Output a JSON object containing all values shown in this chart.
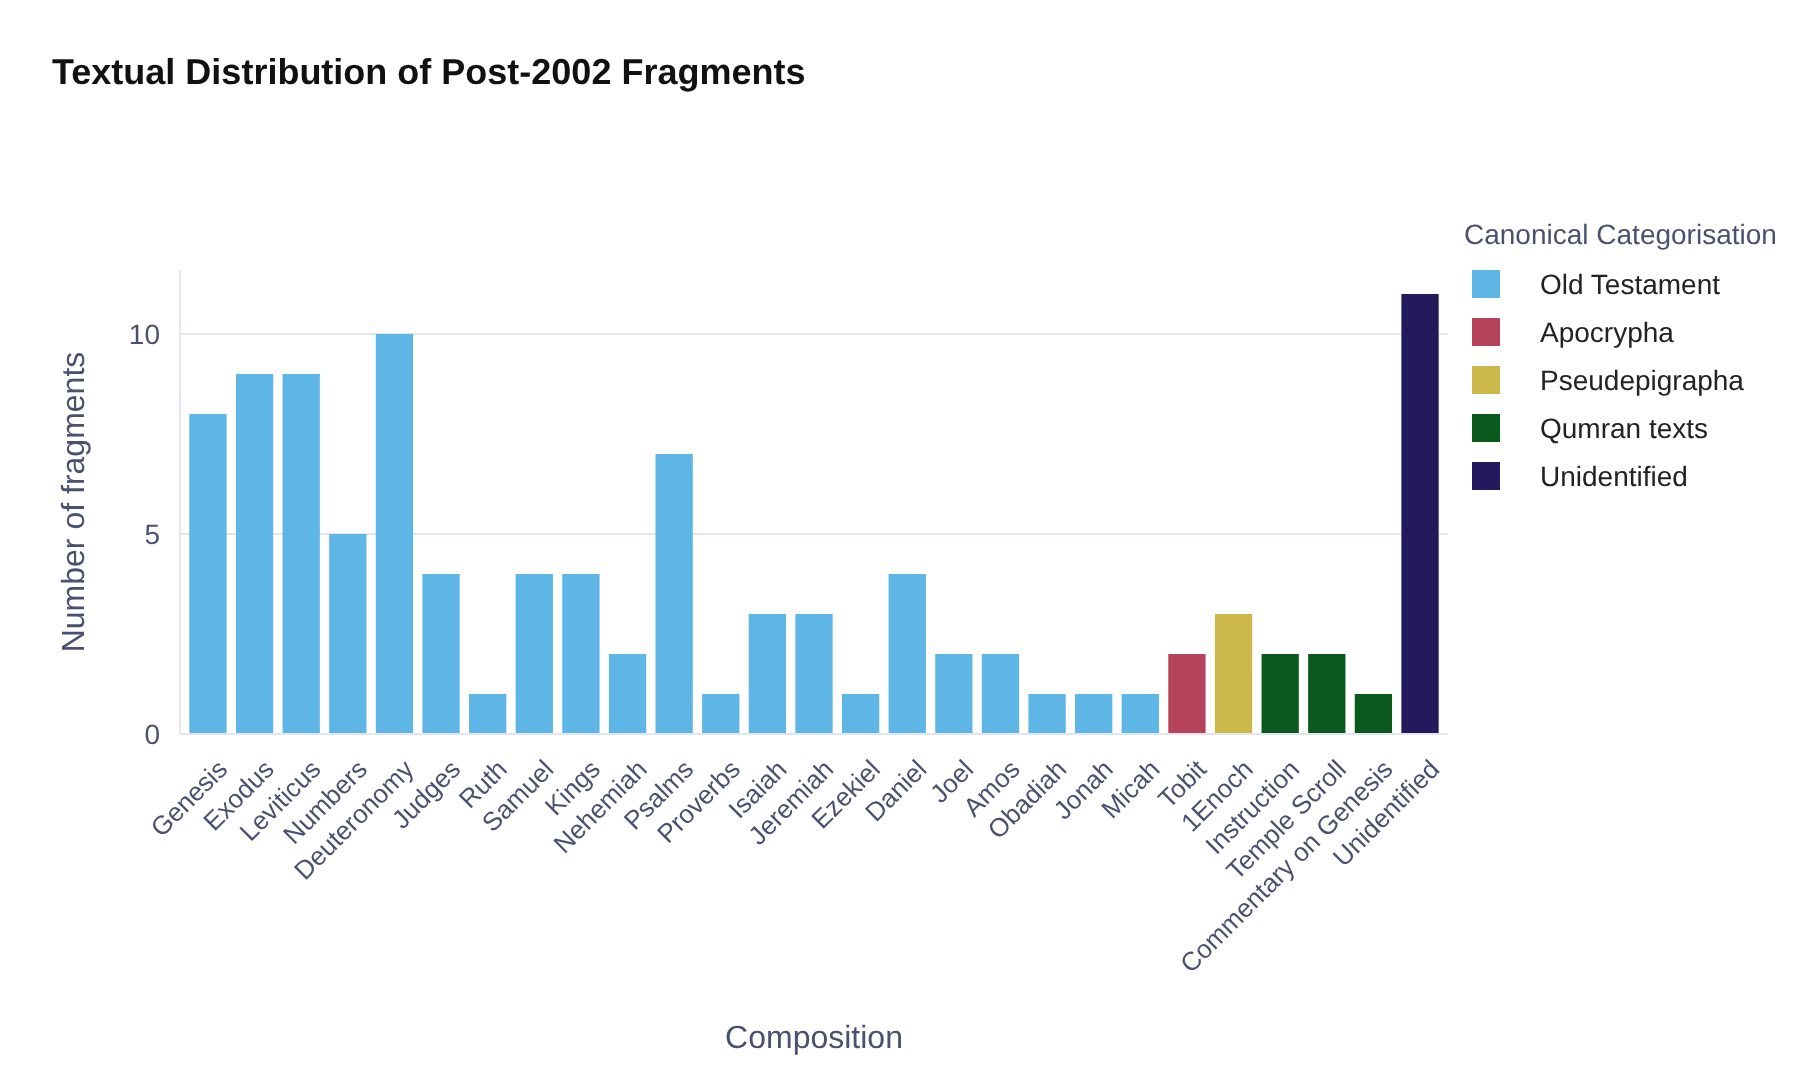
{
  "chart_data": {
    "type": "bar",
    "title": "Textual Distribution of Post-2002 Fragments",
    "xlabel": "Composition",
    "ylabel": "Number of fragments",
    "legend_title": "Canonical Categorisation",
    "categories": [
      "Genesis",
      "Exodus",
      "Leviticus",
      "Numbers",
      "Deuteronomy",
      "Judges",
      "Ruth",
      "Samuel",
      "Kings",
      "Nehemiah",
      "Psalms",
      "Proverbs",
      "Isaiah",
      "Jeremiah",
      "Ezekiel",
      "Daniel",
      "Joel",
      "Amos",
      "Obadiah",
      "Jonah",
      "Micah",
      "Tobit",
      "1Enoch",
      "Instruction",
      "Temple Scroll",
      "Commentary on Genesis",
      "Unidentified"
    ],
    "series": [
      {
        "name": "Old Testament",
        "color": "#5db6e6",
        "values": [
          8,
          9,
          9,
          5,
          10,
          4,
          1,
          4,
          4,
          2,
          7,
          1,
          3,
          3,
          1,
          4,
          2,
          2,
          1,
          1,
          1,
          null,
          null,
          null,
          null,
          null,
          null
        ]
      },
      {
        "name": "Apocrypha",
        "color": "#b5435a",
        "values": [
          null,
          null,
          null,
          null,
          null,
          null,
          null,
          null,
          null,
          null,
          null,
          null,
          null,
          null,
          null,
          null,
          null,
          null,
          null,
          null,
          null,
          2,
          null,
          null,
          null,
          null,
          null
        ]
      },
      {
        "name": "Pseudepigrapha",
        "color": "#cdb84b",
        "values": [
          null,
          null,
          null,
          null,
          null,
          null,
          null,
          null,
          null,
          null,
          null,
          null,
          null,
          null,
          null,
          null,
          null,
          null,
          null,
          null,
          null,
          null,
          3,
          null,
          null,
          null,
          null
        ]
      },
      {
        "name": "Qumran texts",
        "color": "#0b5a1d",
        "values": [
          null,
          null,
          null,
          null,
          null,
          null,
          null,
          null,
          null,
          null,
          null,
          null,
          null,
          null,
          null,
          null,
          null,
          null,
          null,
          null,
          null,
          null,
          null,
          2,
          2,
          1,
          null
        ]
      },
      {
        "name": "Unidentified",
        "color": "#221a5d",
        "values": [
          null,
          null,
          null,
          null,
          null,
          null,
          null,
          null,
          null,
          null,
          null,
          null,
          null,
          null,
          null,
          null,
          null,
          null,
          null,
          null,
          null,
          null,
          null,
          null,
          null,
          null,
          11
        ]
      }
    ],
    "ylim": [
      0,
      11.6
    ],
    "yticks": [
      0,
      5,
      10
    ],
    "grid": "y",
    "legend": "right"
  }
}
